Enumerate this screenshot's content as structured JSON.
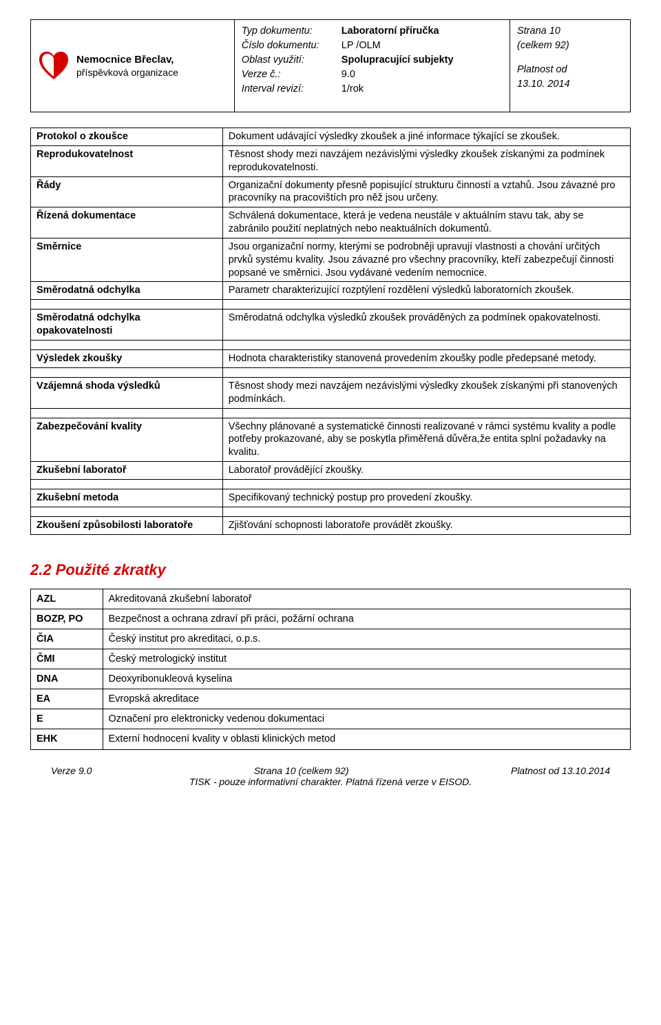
{
  "header": {
    "org_name": "Nemocnice Břeclav,",
    "org_sub": "příspěvková organizace",
    "mid": [
      {
        "k": "Typ dokumentu:",
        "v": "Laboratorní příručka",
        "bold": true
      },
      {
        "k": "Číslo dokumentu:",
        "v": "LP /OLM",
        "bold": false
      },
      {
        "k": "Oblast využití:",
        "v": "Spolupracující subjekty",
        "bold": true
      },
      {
        "k": "Verze č.:",
        "v": "9.0",
        "bold": false
      },
      {
        "k": "Interval revizí:",
        "v": "1/rok",
        "bold": false
      }
    ],
    "right_page": "Strana 10",
    "right_total": "(celkem 92)",
    "right_valid_from": "Platnost od",
    "right_date": "13.10. 2014"
  },
  "defs": [
    {
      "term": "Protokol o zkoušce",
      "def": "Dokument udávající výsledky zkoušek a jiné informace týkající se zkoušek."
    },
    {
      "term": "Reprodukovatelnost",
      "def": "Těsnost shody mezi navzájem nezávislými výsledky zkoušek získanými za podmínek reprodukovatelnosti."
    },
    {
      "term": "Řády",
      "def": "Organizační dokumenty přesně popisující strukturu činností a vztahů. Jsou závazné pro pracovníky na pracovištích pro něž jsou určeny."
    },
    {
      "term": "Řízená dokumentace",
      "def": "Schválená dokumentace, která je vedena neustále v aktuálním stavu tak, aby se zabránilo použití neplatných nebo neaktuálních dokumentů."
    },
    {
      "term": "Směrnice",
      "def": "Jsou organizační normy, kterými se podrobněji upravují vlastnosti a chování určitých prvků systému kvality. Jsou závazné pro všechny pracovníky, kteří zabezpečují činnosti popsané ve směrnici. Jsou vydávané vedením nemocnice."
    },
    {
      "term": "Směrodatná odchylka",
      "def": "Parametr charakterizující rozptýlení rozdělení výsledků laboratorních zkoušek."
    }
  ],
  "defs2": [
    {
      "term": "Směrodatná odchylka opakovatelnosti",
      "def": "Směrodatná odchylka výsledků zkoušek prováděných za podmínek opakovatelnosti."
    }
  ],
  "defs3": [
    {
      "term": "Výsledek zkoušky",
      "def": "Hodnota charakteristiky stanovená provedením zkoušky podle předepsané metody."
    }
  ],
  "defs4": [
    {
      "term": "Vzájemná shoda výsledků",
      "def": "Těsnost shody mezi navzájem nezávislými výsledky zkoušek získanými při stanovených podmínkách."
    }
  ],
  "defs5": [
    {
      "term": "Zabezpečování kvality",
      "def": "Všechny plánované a systematické činnosti realizované v rámci systému kvality a podle potřeby prokazované, aby se poskytla přiměřená důvěra,že entita splní požadavky na kvalitu."
    },
    {
      "term": "Zkušební laboratoř",
      "def": "Laboratoř provádějící zkoušky."
    }
  ],
  "defs6": [
    {
      "term": "Zkušební metoda",
      "def": "Specifikovaný technický postup pro provedení zkoušky."
    }
  ],
  "defs7": [
    {
      "term": "Zkoušení způsobilosti laboratoře",
      "def": "Zjišťování schopnosti laboratoře provádět zkoušky."
    }
  ],
  "section_title": "2.2 Použité zkratky",
  "abbr": [
    {
      "code": "AZL",
      "desc": "Akreditovaná zkušební laboratoř"
    },
    {
      "code": "BOZP, PO",
      "desc": "Bezpečnost a ochrana zdraví při práci, požární ochrana"
    },
    {
      "code": "ČIA",
      "desc": "Český institut pro akreditaci, o.p.s."
    },
    {
      "code": "ČMI",
      "desc": "Český metrologický institut"
    },
    {
      "code": "DNA",
      "desc": "Deoxyribonukleová kyselina"
    },
    {
      "code": "EA",
      "desc": "Evropská akreditace"
    },
    {
      "code": "E",
      "desc": "Označení pro elektronicky vedenou dokumentaci"
    },
    {
      "code": "EHK",
      "desc": "Externí hodnocení kvality v oblasti klinických metod"
    }
  ],
  "footer": {
    "verze": "Verze 9.0",
    "strana": "Strana 10 (celkem 92)",
    "platnost": "Platnost od 13.10.2014",
    "tisk": "TISK - pouze informativní charakter. Platná řízená verze v EISOD."
  }
}
